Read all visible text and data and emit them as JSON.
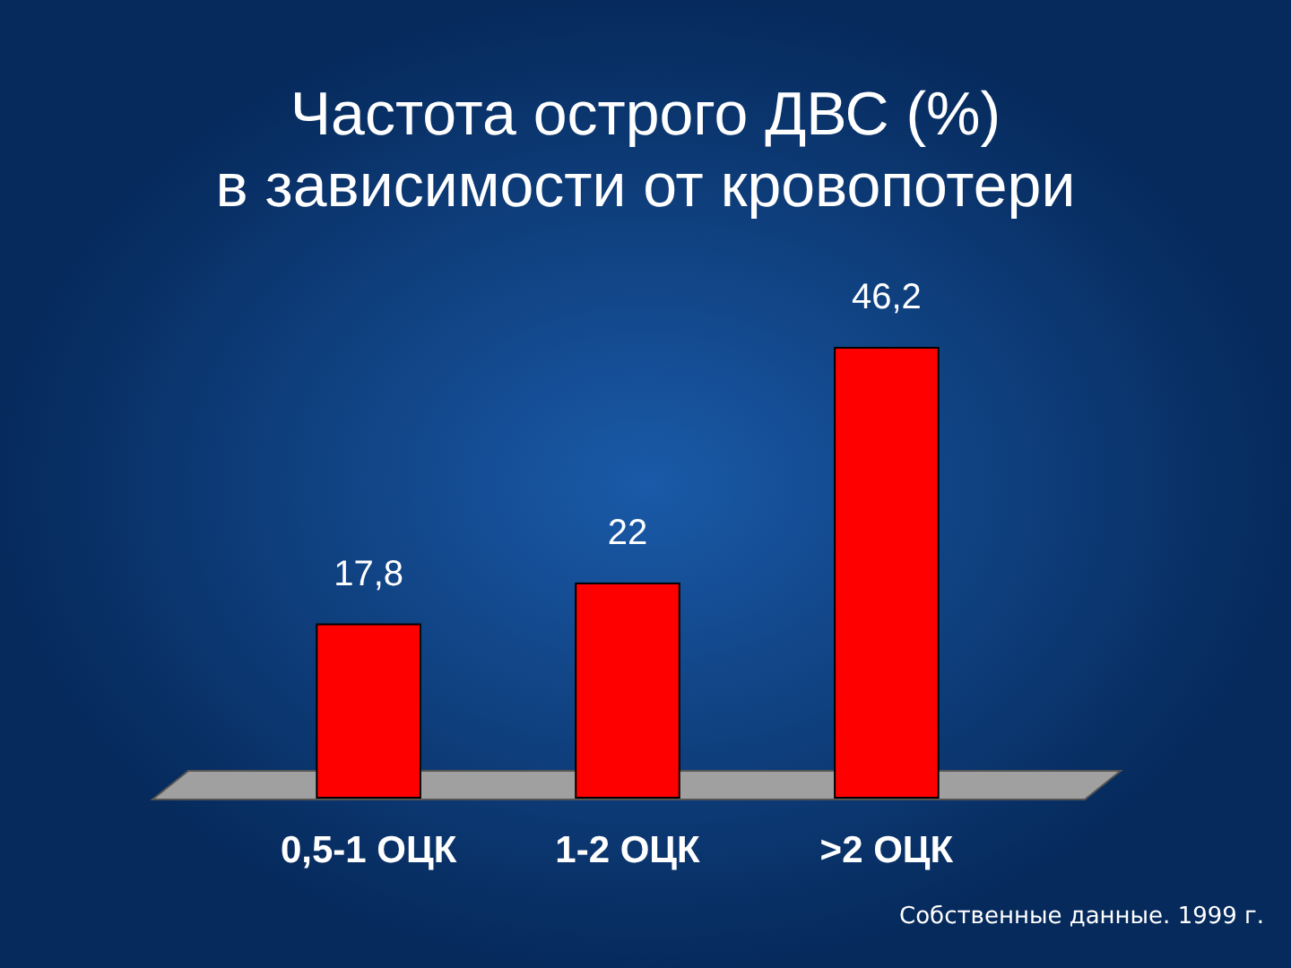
{
  "chart_data": {
    "type": "bar",
    "title": "Частота острого ДВС (%)\nв зависимости от кровопотери",
    "categories": [
      "0,5-1 ОЦК",
      "1-2 ОЦК",
      ">2 ОЦК"
    ],
    "values": [
      17.8,
      22,
      46.2
    ],
    "value_labels": [
      "17,8",
      "22",
      "46,2"
    ],
    "color": "#ff0000",
    "annotations": [
      "Собственные данные. 1999 г."
    ]
  }
}
